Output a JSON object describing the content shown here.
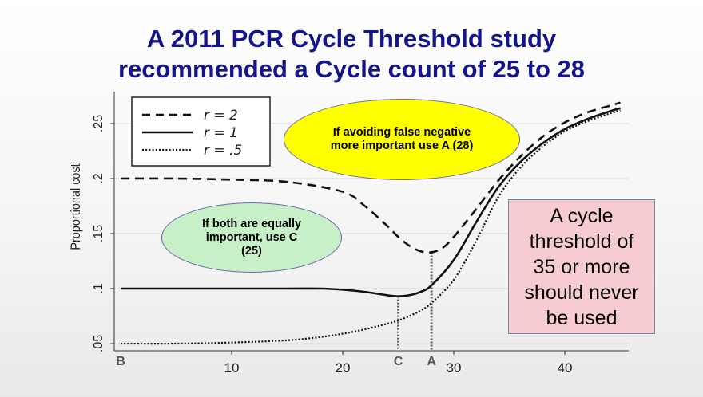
{
  "slide": {
    "title_line1": "A 2011 PCR Cycle Threshold study",
    "title_line2": "recommended a Cycle count of 25 to 28"
  },
  "callouts": {
    "yellow": "If avoiding false negative more important use A (28)",
    "green": "If both are equally important, use C (25)",
    "warning": "A cycle threshold of 35 or more should never be used"
  },
  "chart_data": {
    "type": "line",
    "ylabel": "Proportional cost",
    "xlim": [
      0,
      46
    ],
    "ylim": [
      0.04,
      0.27
    ],
    "x_ticks": [
      10,
      20,
      30,
      40
    ],
    "x_tick_labels": [
      "10",
      "20",
      "30",
      "40"
    ],
    "y_ticks": [
      0.05,
      0.1,
      0.15,
      0.2,
      0.25
    ],
    "y_tick_labels": [
      ".05",
      ".1",
      ".15",
      ".2",
      ".25"
    ],
    "grid": true,
    "legend": "top-left",
    "series": [
      {
        "name": "r = 2",
        "style": "dashed",
        "x": [
          0,
          5,
          10,
          15,
          20,
          22,
          24,
          25,
          26,
          27,
          28,
          29,
          30,
          32,
          34,
          36,
          38,
          40,
          42,
          44,
          45
        ],
        "y": [
          0.2,
          0.2,
          0.199,
          0.197,
          0.188,
          0.175,
          0.157,
          0.147,
          0.139,
          0.134,
          0.133,
          0.137,
          0.147,
          0.172,
          0.198,
          0.22,
          0.238,
          0.251,
          0.26,
          0.266,
          0.269
        ]
      },
      {
        "name": "r = 1",
        "style": "solid",
        "x": [
          0,
          5,
          10,
          15,
          18,
          20,
          22,
          24,
          25,
          26,
          27,
          28,
          30,
          32,
          34,
          36,
          38,
          40,
          42,
          44,
          45
        ],
        "y": [
          0.1,
          0.1,
          0.1,
          0.1,
          0.1,
          0.099,
          0.097,
          0.094,
          0.093,
          0.094,
          0.097,
          0.103,
          0.126,
          0.16,
          0.192,
          0.215,
          0.232,
          0.245,
          0.254,
          0.261,
          0.264
        ]
      },
      {
        "name": "r = .5",
        "style": "dotted",
        "x": [
          0,
          5,
          10,
          15,
          18,
          20,
          22,
          24,
          25,
          26,
          27,
          28,
          30,
          32,
          34,
          36,
          38,
          40,
          42,
          44,
          45
        ],
        "y": [
          0.05,
          0.05,
          0.051,
          0.053,
          0.056,
          0.059,
          0.063,
          0.068,
          0.071,
          0.075,
          0.08,
          0.087,
          0.108,
          0.143,
          0.183,
          0.21,
          0.229,
          0.243,
          0.252,
          0.259,
          0.262
        ]
      }
    ],
    "markers": [
      {
        "label": "B",
        "x": 0,
        "y": 0.05
      },
      {
        "label": "C",
        "x": 25,
        "y": 0.093
      },
      {
        "label": "A",
        "x": 28,
        "y": 0.133
      }
    ]
  }
}
